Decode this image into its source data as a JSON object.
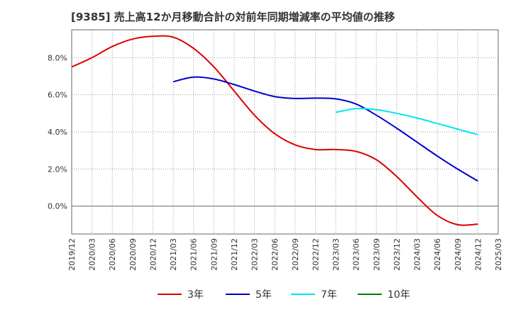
{
  "chart_data": {
    "type": "line",
    "title": "[9385]  売上高12か月移動合計の対前年同期増減率の平均値の推移",
    "xlabel": "",
    "ylabel": "",
    "x_ticks": [
      "2019/12",
      "2020/03",
      "2020/06",
      "2020/09",
      "2020/12",
      "2021/03",
      "2021/06",
      "2021/09",
      "2021/12",
      "2022/03",
      "2022/06",
      "2022/09",
      "2022/12",
      "2023/03",
      "2023/06",
      "2023/09",
      "2023/12",
      "2024/03",
      "2024/06",
      "2024/09",
      "2024/12",
      "2025/03"
    ],
    "y_ticks": [
      "0.0%",
      "2.0%",
      "4.0%",
      "6.0%",
      "8.0%"
    ],
    "y_tick_values": [
      0,
      2,
      4,
      6,
      8
    ],
    "ylim": [
      -1.5,
      9.5
    ],
    "grid": true,
    "legend_position": "bottom",
    "series": [
      {
        "name": "3年",
        "color": "#dd0000",
        "x": [
          "2019/12",
          "2020/03",
          "2020/06",
          "2020/09",
          "2020/12",
          "2021/03",
          "2021/06",
          "2021/09",
          "2021/12",
          "2022/03",
          "2022/06",
          "2022/09",
          "2022/12",
          "2023/03",
          "2023/06",
          "2023/09",
          "2023/12",
          "2024/03",
          "2024/06",
          "2024/09",
          "2024/12"
        ],
        "values": [
          7.5,
          8.0,
          8.6,
          9.0,
          9.15,
          9.1,
          8.5,
          7.5,
          6.2,
          4.9,
          3.9,
          3.3,
          3.05,
          3.05,
          2.95,
          2.5,
          1.6,
          0.5,
          -0.5,
          -1.0,
          -0.97
        ]
      },
      {
        "name": "5年",
        "color": "#0000cc",
        "x": [
          "2021/03",
          "2021/06",
          "2021/09",
          "2021/12",
          "2022/03",
          "2022/06",
          "2022/09",
          "2022/12",
          "2023/03",
          "2023/06",
          "2023/09",
          "2023/12",
          "2024/03",
          "2024/06",
          "2024/09",
          "2024/12"
        ],
        "values": [
          6.7,
          6.95,
          6.85,
          6.55,
          6.2,
          5.9,
          5.8,
          5.82,
          5.78,
          5.5,
          4.9,
          4.2,
          3.45,
          2.7,
          2.0,
          1.35
        ]
      },
      {
        "name": "7年",
        "color": "#00e5ee",
        "x": [
          "2023/03",
          "2023/06",
          "2023/09",
          "2023/12",
          "2024/03",
          "2024/06",
          "2024/09",
          "2024/12"
        ],
        "values": [
          5.05,
          5.25,
          5.2,
          5.0,
          4.75,
          4.45,
          4.15,
          3.85
        ]
      },
      {
        "name": "10年",
        "color": "#008000",
        "x": [],
        "values": []
      }
    ]
  }
}
